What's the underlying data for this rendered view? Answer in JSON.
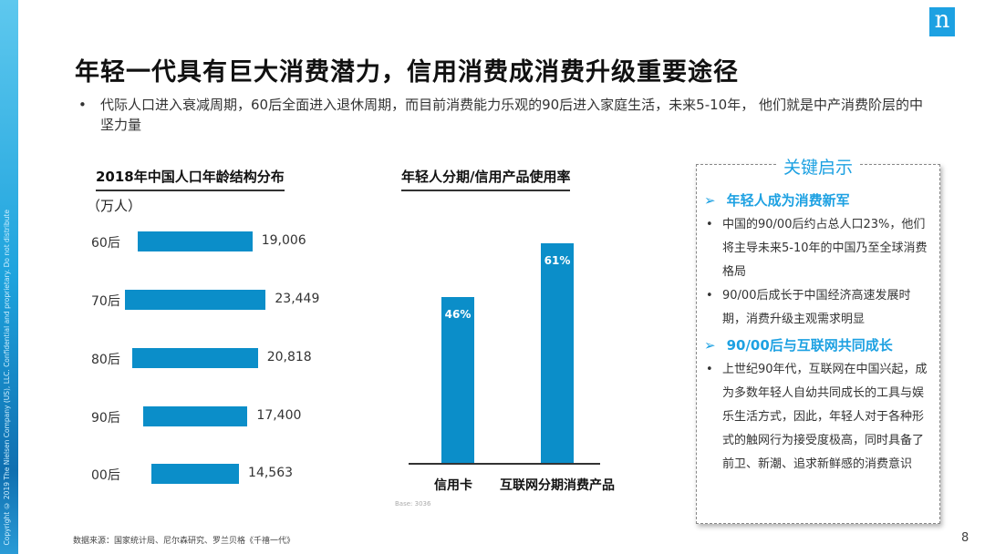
{
  "copyright": "Copyright © 2019 The Nielsen Company (US), LLC. Confidential and proprietary. Do not distribute",
  "logo": "n",
  "title": "年轻一代具有巨大消费潜力，信用消费成消费升级重要途径",
  "bullet": "代际人口进入衰减周期，60后全面进入退休周期，而目前消费能力乐观的90后进入家庭生活，未来5-10年， 他们就是中产消费阶层的中坚力量",
  "chart_data": [
    {
      "type": "bar",
      "orientation": "horizontal",
      "title": "2018年中国人口年龄结构分布",
      "unit": "（万人）",
      "categories": [
        "60后",
        "70后",
        "80后",
        "90后",
        "00后"
      ],
      "values": [
        19006,
        23449,
        20818,
        17400,
        14563
      ],
      "labels": [
        "19,006",
        "23,449",
        "20,818",
        "17,400",
        "14,563"
      ]
    },
    {
      "type": "bar",
      "title": "年轻人分期/信用产品使用率",
      "categories": [
        "信用卡",
        "互联网分期消费产品"
      ],
      "values": [
        46,
        61
      ],
      "labels": [
        "46%",
        "61%"
      ],
      "base": "Base:   3036"
    }
  ],
  "box": {
    "title": "关键启示",
    "sections": [
      {
        "head": "年轻人成为消费新军",
        "items": [
          "中国的90/00后约占总人口23%，他们将主导未来5-10年的中国乃至全球消费格局",
          "90/00后成长于中国经济高速发展时期，消费升级主观需求明显"
        ]
      },
      {
        "head": "90/00后与互联网共同成长",
        "items": [
          "上世纪90年代，互联网在中国兴起，成为多数年轻人自幼共同成长的工具与娱乐生活方式，因此，年轻人对于各种形式的触网行为接受度极高，同时具备了前卫、新潮、追求新鲜感的消费意识"
        ]
      }
    ]
  },
  "source": "数据来源：国家统计局、尼尔森研究、罗兰贝格《千禧一代》",
  "page": "8",
  "colors": {
    "bar": "#0b8ec9",
    "accent": "#1da1e2"
  }
}
